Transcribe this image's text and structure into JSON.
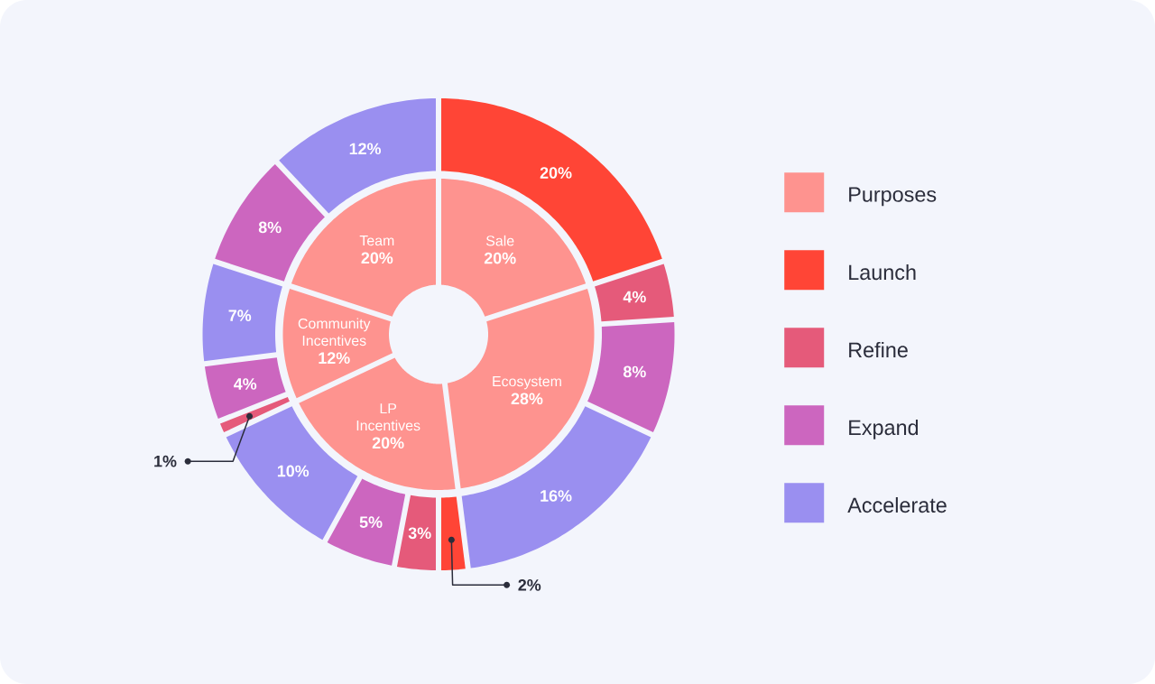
{
  "chart_data": [
    {
      "type": "donut",
      "categories": [
        "Sale",
        "Ecosystem",
        "LP Incentives",
        "Community Incentives",
        "Team"
      ],
      "series": [
        {
          "name": "Purposes",
          "color": "#fe938f",
          "values": [
            20,
            28,
            20,
            12,
            20
          ],
          "value_labels": [
            "20%",
            "28%",
            "20%",
            "12%",
            "20%"
          ]
        }
      ],
      "legend": "right"
    },
    {
      "type": "donut",
      "categories": [
        "Launch",
        "Refine",
        "Expand",
        "Accelerate",
        null,
        null,
        null,
        null,
        null,
        null,
        null,
        null,
        null
      ],
      "values": [
        20,
        4,
        8,
        16,
        2,
        3,
        5,
        10,
        1,
        4,
        7,
        8,
        12
      ],
      "colors": [
        "#ff4536",
        "#e55a7a",
        "#cc66bf",
        "#9a8ff0",
        "#ff4536",
        "#e55a7a",
        "#cc66bf",
        "#9a8ff0",
        "#e55a7a",
        "#cc66bf",
        "#9a8ff0",
        "#cc66bf",
        "#9a8ff0"
      ],
      "value_labels": [
        "20%",
        "4%",
        "8%",
        "16%",
        "2%",
        "3%",
        "5%",
        "10%",
        "1%",
        "4%",
        "7%",
        "8%",
        "12%"
      ],
      "legend": "right"
    }
  ]
}
